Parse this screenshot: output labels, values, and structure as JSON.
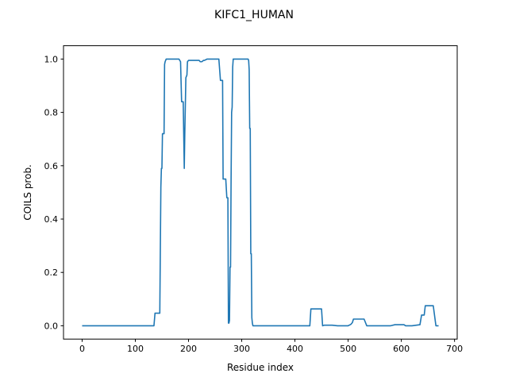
{
  "chart_data": {
    "type": "line",
    "title": "KIFC1_HUMAN",
    "xlabel": "Residue index",
    "ylabel": "COILS prob.",
    "xlim": [
      -35,
      705
    ],
    "ylim": [
      -0.05,
      1.05
    ],
    "xticks": [
      0,
      100,
      200,
      300,
      400,
      500,
      600,
      700
    ],
    "yticks": [
      0.0,
      0.2,
      0.4,
      0.6,
      0.8,
      1.0
    ],
    "ytick_format": 1,
    "grid": false,
    "color": "#1f77b4",
    "x": [
      0,
      135,
      137,
      138,
      146,
      148,
      149,
      150,
      151,
      152,
      154,
      155,
      156,
      158,
      160,
      182,
      185,
      187,
      190,
      192,
      193,
      195,
      197,
      198,
      200,
      202,
      203,
      207,
      210,
      220,
      222,
      225,
      228,
      230,
      235,
      240,
      250,
      257,
      260,
      262,
      263,
      264,
      265,
      270,
      272,
      274,
      275,
      276,
      277,
      278,
      279,
      280,
      281,
      282,
      283,
      284,
      286,
      288,
      300,
      312,
      313,
      314,
      315,
      316,
      317,
      318,
      319,
      320,
      321,
      322,
      324,
      330,
      380,
      428,
      430,
      448,
      450,
      452,
      455,
      470,
      480,
      500,
      505,
      508,
      510,
      530,
      535,
      540,
      560,
      580,
      588,
      605,
      608,
      620,
      635,
      638,
      640,
      643,
      645,
      660,
      665,
      670
    ],
    "y": [
      0.0,
      0.0,
      0.047,
      0.047,
      0.047,
      0.52,
      0.59,
      0.59,
      0.72,
      0.72,
      0.72,
      0.98,
      0.99,
      1.0,
      1.0,
      1.0,
      0.99,
      0.84,
      0.84,
      0.59,
      0.72,
      0.93,
      0.94,
      0.99,
      0.995,
      0.995,
      0.995,
      0.995,
      0.995,
      0.995,
      0.99,
      0.99,
      0.995,
      0.995,
      1.0,
      1.0,
      1.0,
      1.0,
      0.92,
      0.92,
      0.92,
      0.92,
      0.55,
      0.55,
      0.48,
      0.48,
      0.01,
      0.01,
      0.02,
      0.22,
      0.22,
      0.55,
      0.8,
      0.82,
      0.97,
      1.0,
      1.0,
      1.0,
      1.0,
      1.0,
      0.995,
      0.96,
      0.74,
      0.74,
      0.27,
      0.27,
      0.03,
      0.01,
      0.0,
      0.0,
      0.0,
      0.0,
      0.0,
      0.0,
      0.063,
      0.063,
      0.063,
      0.0,
      0.002,
      0.002,
      0.0,
      0.0,
      0.005,
      0.012,
      0.025,
      0.025,
      0.0,
      0.0,
      0.0,
      0.0,
      0.004,
      0.004,
      0.0,
      0.0,
      0.004,
      0.04,
      0.04,
      0.04,
      0.075,
      0.075,
      0.0,
      0.0
    ]
  }
}
